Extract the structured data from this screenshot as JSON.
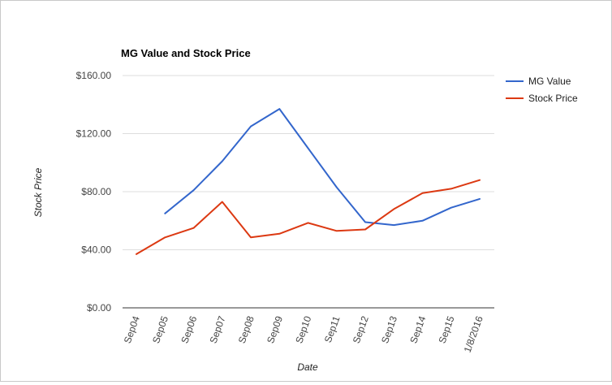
{
  "chart_data": {
    "type": "line",
    "title": "MG Value and Stock Price",
    "xlabel": "Date",
    "ylabel": "Stock Price",
    "categories": [
      "Sep04",
      "Sep05",
      "Sep06",
      "Sep07",
      "Sep08",
      "Sep09",
      "Sep10",
      "Sep11",
      "Sep12",
      "Sep13",
      "Sep14",
      "Sep15",
      "1/8/2016"
    ],
    "ylim": [
      0,
      160
    ],
    "yticks": [
      "$0.00",
      "$40.00",
      "$80.00",
      "$120.00",
      "$160.00"
    ],
    "ytick_values": [
      0,
      40,
      80,
      120,
      160
    ],
    "grid": true,
    "legend_position": "right",
    "series": [
      {
        "name": "MG Value",
        "color": "#3366cc",
        "values": [
          null,
          65,
          81,
          101,
          125,
          137,
          110,
          83,
          59,
          57,
          60,
          69,
          75
        ]
      },
      {
        "name": "Stock Price",
        "color": "#dc3912",
        "values": [
          37,
          48.5,
          55,
          73,
          48.5,
          51,
          58.5,
          53,
          54,
          68,
          79,
          82,
          88
        ]
      }
    ]
  }
}
